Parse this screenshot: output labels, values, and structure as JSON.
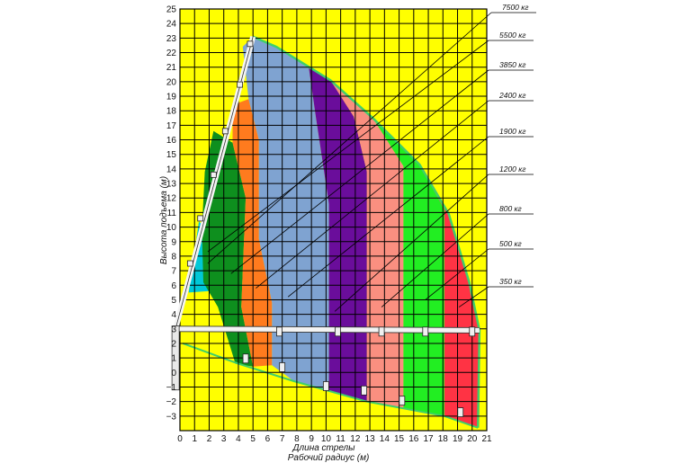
{
  "chart_data": {
    "type": "area",
    "xlabel": "Длина стрелы",
    "xlabel2": "Рабочий радиус (м)",
    "ylabel": "Высота подъема (м)",
    "xlim": [
      0,
      21
    ],
    "ylim": [
      -4,
      25
    ],
    "x_ticks": [
      0,
      1,
      2,
      3,
      4,
      5,
      6,
      7,
      8,
      9,
      10,
      11,
      12,
      13,
      14,
      15,
      16,
      17,
      18,
      19,
      20,
      21
    ],
    "y_ticks": [
      -3,
      -2,
      -1,
      0,
      1,
      2,
      3,
      4,
      5,
      6,
      7,
      8,
      9,
      10,
      11,
      12,
      13,
      14,
      15,
      16,
      17,
      18,
      19,
      20,
      21,
      22,
      23,
      24,
      25
    ],
    "grid": true,
    "background_color": "#ffff00",
    "boom_tip": [
      5.0,
      23.1
    ],
    "boom_base": [
      -0.3,
      3.0
    ],
    "lower_boom_tip": [
      20.5,
      2.9
    ],
    "outer_envelope_bottom": [
      20.4,
      -3.8
    ],
    "series": [
      {
        "name": "7500 кг",
        "color": "#ff0000",
        "leader_target": [
          1.9,
          7.5
        ],
        "polygon": [
          [
            0.9,
            6.6
          ],
          [
            1.2,
            9.1
          ],
          [
            1.8,
            8.4
          ],
          [
            2.4,
            7.2
          ],
          [
            1.8,
            6.7
          ]
        ]
      },
      {
        "name": "5500 кг",
        "color": "#00c8d7",
        "leader_target": [
          1.9,
          8.3
        ],
        "polygon": [
          [
            0.6,
            5.5
          ],
          [
            1.3,
            10.4
          ],
          [
            2.5,
            9.0
          ],
          [
            3.5,
            6.4
          ],
          [
            2.0,
            5.6
          ]
        ]
      },
      {
        "name": "3850 кг",
        "color": "#0e8f1e",
        "leader_target": [
          3.5,
          6.8
        ],
        "polygon": [
          [
            1.7,
            13.8
          ],
          [
            2.3,
            16.6
          ],
          [
            3.6,
            15.8
          ],
          [
            4.5,
            12.0
          ],
          [
            4.2,
            4.5
          ],
          [
            5.0,
            0.4
          ],
          [
            3.8,
            0.6
          ],
          [
            2.6,
            4.5
          ],
          [
            1.6,
            6.2
          ],
          [
            1.5,
            9.8
          ]
        ]
      },
      {
        "name": "2400 кг",
        "color": "#ff7b1e",
        "leader_target": [
          5.2,
          5.8
        ],
        "polygon": [
          [
            3.6,
            18.4
          ],
          [
            4.7,
            18.8
          ],
          [
            5.4,
            16.0
          ],
          [
            5.4,
            9.2
          ],
          [
            6.3,
            4.8
          ],
          [
            6.3,
            0.5
          ],
          [
            5.0,
            0.4
          ],
          [
            4.2,
            4.5
          ],
          [
            4.5,
            12.0
          ],
          [
            3.6,
            15.8
          ]
        ]
      },
      {
        "name": "1900 кг",
        "color": "#7fa3d1",
        "leader_target": [
          7.4,
          5.2
        ],
        "polygon": [
          [
            4.3,
            22.4
          ],
          [
            5.0,
            23.1
          ],
          [
            6.6,
            22.4
          ],
          [
            8.8,
            21.1
          ],
          [
            9.3,
            17.6
          ],
          [
            10.2,
            11.6
          ],
          [
            10.2,
            -1.3
          ],
          [
            7.8,
            -0.6
          ],
          [
            6.3,
            0.5
          ],
          [
            6.3,
            4.8
          ],
          [
            5.4,
            9.2
          ],
          [
            5.4,
            16.0
          ],
          [
            4.7,
            18.8
          ]
        ]
      },
      {
        "name": "1200 кг",
        "color": "#6a0d9b",
        "leader_target": [
          10.6,
          4.2
        ],
        "polygon": [
          [
            8.8,
            21.1
          ],
          [
            10.3,
            20.1
          ],
          [
            11.9,
            17.6
          ],
          [
            12.8,
            13.8
          ],
          [
            12.8,
            -2.0
          ],
          [
            10.2,
            -1.3
          ],
          [
            10.2,
            11.6
          ],
          [
            9.3,
            17.6
          ]
        ]
      },
      {
        "name": "800 кг",
        "color": "#fa8f80",
        "leader_target": [
          13.8,
          4.5
        ],
        "polygon": [
          [
            10.3,
            20.1
          ],
          [
            13.2,
            17.5
          ],
          [
            15.3,
            14.2
          ],
          [
            15.3,
            -2.5
          ],
          [
            12.8,
            -2.0
          ],
          [
            12.8,
            13.8
          ],
          [
            11.9,
            17.6
          ]
        ]
      },
      {
        "name": "500 кг",
        "color": "#22ee22",
        "leader_target": [
          16.8,
          5.0
        ],
        "polygon": [
          [
            13.2,
            17.5
          ],
          [
            16.4,
            14.3
          ],
          [
            18.1,
            11.2
          ],
          [
            18.1,
            -3.0
          ],
          [
            15.3,
            -2.5
          ],
          [
            15.3,
            14.2
          ]
        ]
      },
      {
        "name": "350 кг",
        "color": "#ff3344",
        "leader_target": [
          19.1,
          4.5
        ],
        "polygon": [
          [
            16.4,
            14.3
          ],
          [
            18.4,
            10.9
          ],
          [
            19.8,
            6.2
          ],
          [
            20.5,
            2.9
          ],
          [
            20.4,
            -3.8
          ],
          [
            18.1,
            -3.0
          ],
          [
            18.1,
            11.2
          ]
        ]
      }
    ]
  }
}
